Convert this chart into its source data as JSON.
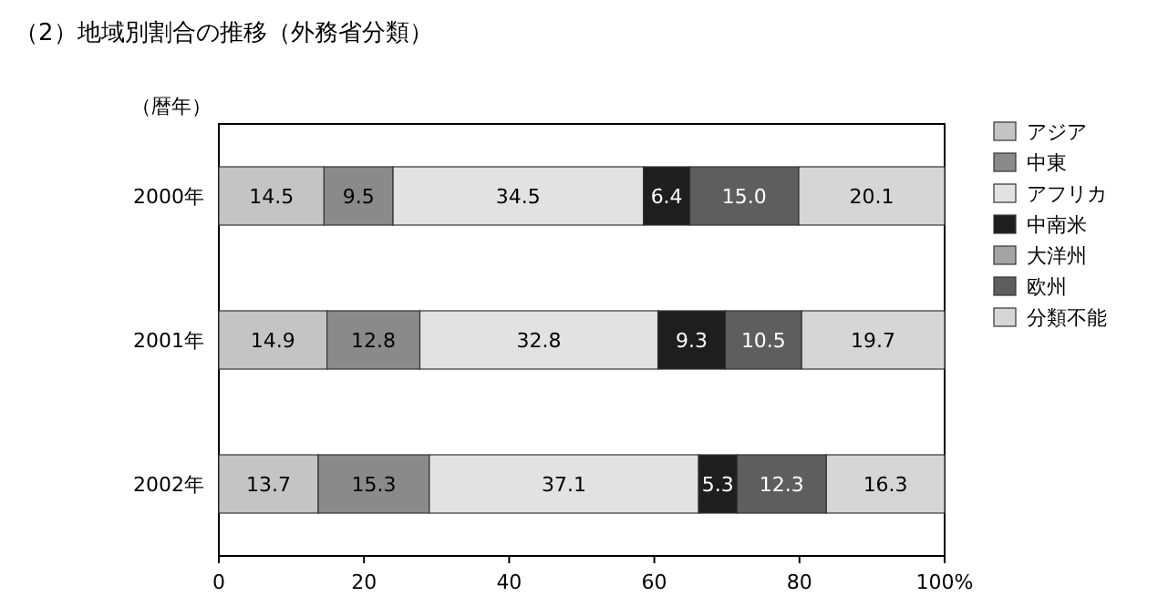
{
  "chart_data": {
    "type": "bar",
    "orientation": "horizontal",
    "stacked": true,
    "title": "（2）地域別割合の推移（外務省分類）",
    "ylabel": "（暦年）",
    "categories": [
      "2000年",
      "2001年",
      "2002年"
    ],
    "xlim": [
      0,
      100
    ],
    "xticks": [
      0,
      20,
      40,
      60,
      80,
      {
        "value": 100,
        "label": "100%"
      }
    ],
    "legend": "right",
    "series": [
      {
        "name": "アジア",
        "color": "#c4c4c4",
        "values": [
          14.5,
          14.9,
          13.7
        ],
        "value_labels": [
          "14.5",
          "14.9",
          "13.7"
        ]
      },
      {
        "name": "中東",
        "color": "#8a8a8a",
        "values": [
          9.5,
          12.8,
          15.3
        ],
        "value_labels": [
          "9.5",
          "12.8",
          "15.3"
        ]
      },
      {
        "name": "アフリカ",
        "color": "#e2e2e2",
        "values": [
          34.5,
          32.8,
          37.1
        ],
        "value_labels": [
          "34.5",
          "32.8",
          "37.1"
        ]
      },
      {
        "name": "中南米",
        "color": "#1e1e1e",
        "values": [
          6.4,
          9.3,
          5.3
        ],
        "value_labels": [
          "6.4",
          "9.3",
          "5.3"
        ]
      },
      {
        "name": "大洋州",
        "color": "#a4a4a4",
        "values": [
          null,
          null,
          null
        ],
        "value_labels": [
          null,
          null,
          null
        ]
      },
      {
        "name": "欧州",
        "color": "#5e5e5e",
        "values": [
          15.0,
          10.5,
          12.3
        ],
        "value_labels": [
          "15.0",
          "10.5",
          "12.3"
        ]
      },
      {
        "name": "分類不能",
        "color": "#d6d6d6",
        "values": [
          20.1,
          19.7,
          16.3
        ],
        "value_labels": [
          "20.1",
          "19.7",
          "16.3"
        ]
      }
    ]
  }
}
